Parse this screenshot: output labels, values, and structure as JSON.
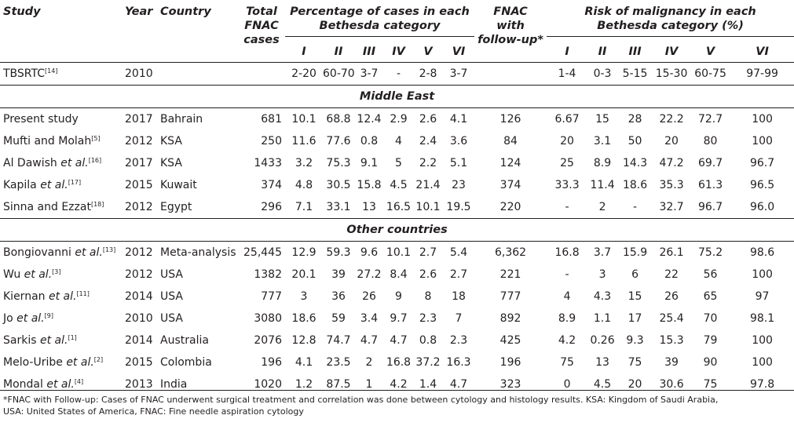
{
  "headers": {
    "study": "Study",
    "year": "Year",
    "country": "Country",
    "total_line1": "Total",
    "total_line2": "FNAC",
    "total_line3": "cases",
    "pct_line1": "Percentage of cases in each",
    "pct_line2": "Bethesda category",
    "fnac_line1": "FNAC",
    "fnac_line2": "with",
    "fnac_line3": "follow-up*",
    "risk_line1": "Risk of malignancy in each",
    "risk_line2": "Bethesda category (%)",
    "categories": [
      "I",
      "II",
      "III",
      "IV",
      "V",
      "VI"
    ]
  },
  "reference_row": {
    "study": "TBSRTC",
    "ref": "[14]",
    "year": "2010",
    "country": "",
    "total": "",
    "pct": [
      "2-20",
      "60-70",
      "3-7",
      "-",
      "2-8",
      "3-7"
    ],
    "fnac": "",
    "risk": [
      "1-4",
      "0-3",
      "5-15",
      "15-30",
      "60-75",
      "97-99"
    ]
  },
  "sections": [
    {
      "title": "Middle East",
      "rows": [
        {
          "study": "Present study",
          "etal": "",
          "ref": "",
          "year": "2017",
          "country": "Bahrain",
          "total": "681",
          "pct": [
            "10.1",
            "68.8",
            "12.4",
            "2.9",
            "2.6",
            "4.1"
          ],
          "fnac": "126",
          "risk": [
            "6.67",
            "15",
            "28",
            "22.2",
            "72.7",
            "100"
          ]
        },
        {
          "study": "Mufti and Molah",
          "etal": "",
          "ref": "[5]",
          "year": "2012",
          "country": "KSA",
          "total": "250",
          "pct": [
            "11.6",
            "77.6",
            "0.8",
            "4",
            "2.4",
            "3.6"
          ],
          "fnac": "84",
          "risk": [
            "20",
            "3.1",
            "50",
            "20",
            "80",
            "100"
          ]
        },
        {
          "study": "Al Dawish ",
          "etal": "et al.",
          "ref": "[16]",
          "year": "2017",
          "country": "KSA",
          "total": "1433",
          "pct": [
            "3.2",
            "75.3",
            "9.1",
            "5",
            "2.2",
            "5.1"
          ],
          "fnac": "124",
          "risk": [
            "25",
            "8.9",
            "14.3",
            "47.2",
            "69.7",
            "96.7"
          ]
        },
        {
          "study": "Kapila ",
          "etal": "et al.",
          "ref": "[17]",
          "year": "2015",
          "country": "Kuwait",
          "total": "374",
          "pct": [
            "4.8",
            "30.5",
            "15.8",
            "4.5",
            "21.4",
            "23"
          ],
          "fnac": "374",
          "risk": [
            "33.3",
            "11.4",
            "18.6",
            "35.3",
            "61.3",
            "96.5"
          ]
        },
        {
          "study": "Sinna and Ezzat",
          "etal": "",
          "ref": "[18]",
          "year": "2012",
          "country": "Egypt",
          "total": "296",
          "pct": [
            "7.1",
            "33.1",
            "13",
            "16.5",
            "10.1",
            "19.5"
          ],
          "fnac": "220",
          "risk": [
            "-",
            "2",
            "-",
            "32.7",
            "96.7",
            "96.0"
          ]
        }
      ]
    },
    {
      "title": "Other countries",
      "rows": [
        {
          "study": "Bongiovanni ",
          "etal": "et al.",
          "ref": "[13]",
          "year": "2012",
          "country": "Meta-analysis",
          "total": "25,445",
          "pct": [
            "12.9",
            "59.3",
            "9.6",
            "10.1",
            "2.7",
            "5.4"
          ],
          "fnac": "6,362",
          "risk": [
            "16.8",
            "3.7",
            "15.9",
            "26.1",
            "75.2",
            "98.6"
          ]
        },
        {
          "study": "Wu ",
          "etal": "et al.",
          "ref": "[3]",
          "year": "2012",
          "country": "USA",
          "total": "1382",
          "pct": [
            "20.1",
            "39",
            "27.2",
            "8.4",
            "2.6",
            "2.7"
          ],
          "fnac": "221",
          "risk": [
            "-",
            "3",
            "6",
            "22",
            "56",
            "100"
          ]
        },
        {
          "study": "Kiernan ",
          "etal": "et al.",
          "ref": "[11]",
          "year": "2014",
          "country": "USA",
          "total": "777",
          "pct": [
            "3",
            "36",
            "26",
            "9",
            "8",
            "18"
          ],
          "fnac": "777",
          "risk": [
            "4",
            "4.3",
            "15",
            "26",
            "65",
            "97"
          ]
        },
        {
          "study": "Jo ",
          "etal": "et al.",
          "ref": "[9]",
          "year": "2010",
          "country": "USA",
          "total": "3080",
          "pct": [
            "18.6",
            "59",
            "3.4",
            "9.7",
            "2.3",
            "7"
          ],
          "fnac": "892",
          "risk": [
            "8.9",
            "1.1",
            "17",
            "25.4",
            "70",
            "98.1"
          ]
        },
        {
          "study": "Sarkis ",
          "etal": "et al.",
          "ref": "[1]",
          "year": "2014",
          "country": "Australia",
          "total": "2076",
          "pct": [
            "12.8",
            "74.7",
            "4.7",
            "4.7",
            "0.8",
            "2.3"
          ],
          "fnac": "425",
          "risk": [
            "4.2",
            "0.26",
            "9.3",
            "15.3",
            "79",
            "100"
          ]
        },
        {
          "study": "Melo-Uribe ",
          "etal": "et al.",
          "ref": "[2]",
          "year": "2015",
          "country": "Colombia",
          "total": "196",
          "pct": [
            "4.1",
            "23.5",
            "2",
            "16.8",
            "37.2",
            "16.3"
          ],
          "fnac": "196",
          "risk": [
            "75",
            "13",
            "75",
            "39",
            "90",
            "100"
          ]
        },
        {
          "study": "Mondal ",
          "etal": "et al.",
          "ref": "[4]",
          "year": "2013",
          "country": "India",
          "total": "1020",
          "pct": [
            "1.2",
            "87.5",
            "1",
            "4.2",
            "1.4",
            "4.7"
          ],
          "fnac": "323",
          "risk": [
            "0",
            "4.5",
            "20",
            "30.6",
            "75",
            "97.8"
          ]
        }
      ]
    }
  ],
  "footnote_line1": "*FNAC with Follow-up: Cases of FNAC underwent surgical treatment and correlation was done between cytology and histology results. KSA: Kingdom of Saudi Arabia,",
  "footnote_line2": "USA: United States of America, FNAC: Fine needle aspiration cytology"
}
